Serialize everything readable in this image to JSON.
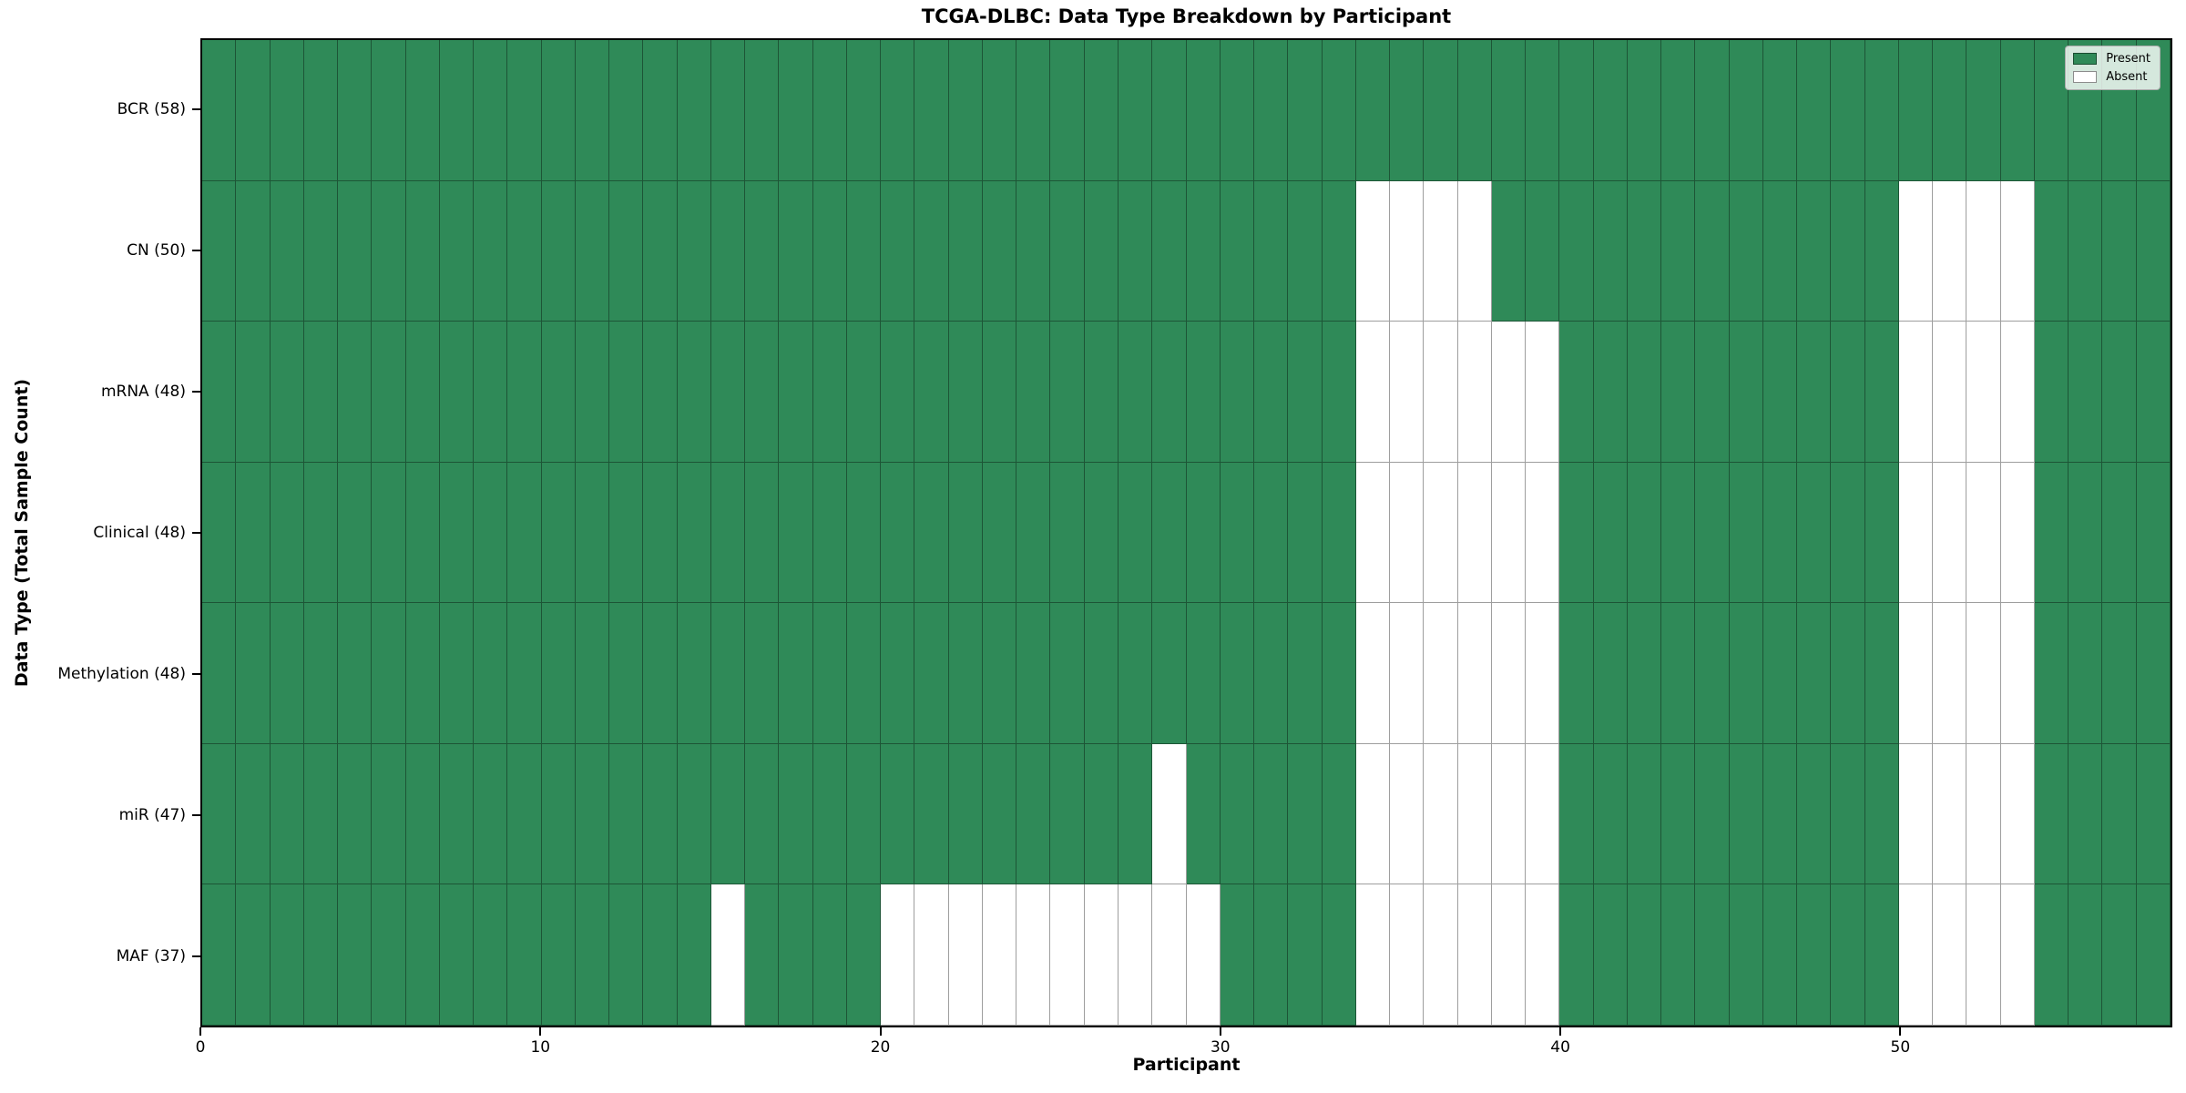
{
  "chart_data": {
    "type": "heatmap",
    "title": "TCGA-DLBC: Data Type Breakdown by Participant",
    "xlabel": "Participant",
    "ylabel": "Data Type (Total Sample Count)",
    "n_participants": 58,
    "x_ticks": [
      0,
      10,
      20,
      30,
      40,
      50
    ],
    "xlim": [
      0,
      58
    ],
    "grid": true,
    "legend_position": "upper right",
    "colors": {
      "present": "#2f8a58",
      "absent": "#ffffff",
      "cell_edge": "rgba(0,0,0,0.38)",
      "spine": "#000000"
    },
    "legend": [
      {
        "label": "Present",
        "color": "#2f8a58"
      },
      {
        "label": "Absent",
        "color": "#ffffff"
      }
    ],
    "rows": [
      {
        "name": "BCR",
        "label": "BCR (58)",
        "total": 58,
        "absent": []
      },
      {
        "name": "CN",
        "label": "CN (50)",
        "total": 50,
        "absent": [
          34,
          35,
          36,
          37,
          50,
          51,
          52,
          53
        ]
      },
      {
        "name": "mRNA",
        "label": "mRNA (48)",
        "total": 48,
        "absent": [
          34,
          35,
          36,
          37,
          38,
          39,
          50,
          51,
          52,
          53
        ]
      },
      {
        "name": "Clinical",
        "label": "Clinical (48)",
        "total": 48,
        "absent": [
          34,
          35,
          36,
          37,
          38,
          39,
          50,
          51,
          52,
          53
        ]
      },
      {
        "name": "Methylation",
        "label": "Methylation (48)",
        "total": 48,
        "absent": [
          34,
          35,
          36,
          37,
          38,
          39,
          50,
          51,
          52,
          53
        ]
      },
      {
        "name": "miR",
        "label": "miR (47)",
        "total": 47,
        "absent": [
          28,
          34,
          35,
          36,
          37,
          38,
          39,
          50,
          51,
          52,
          53
        ]
      },
      {
        "name": "MAF",
        "label": "MAF (37)",
        "total": 37,
        "absent": [
          15,
          20,
          21,
          22,
          23,
          24,
          25,
          26,
          27,
          28,
          29,
          34,
          35,
          36,
          37,
          38,
          39,
          50,
          51,
          52,
          53
        ]
      }
    ]
  }
}
